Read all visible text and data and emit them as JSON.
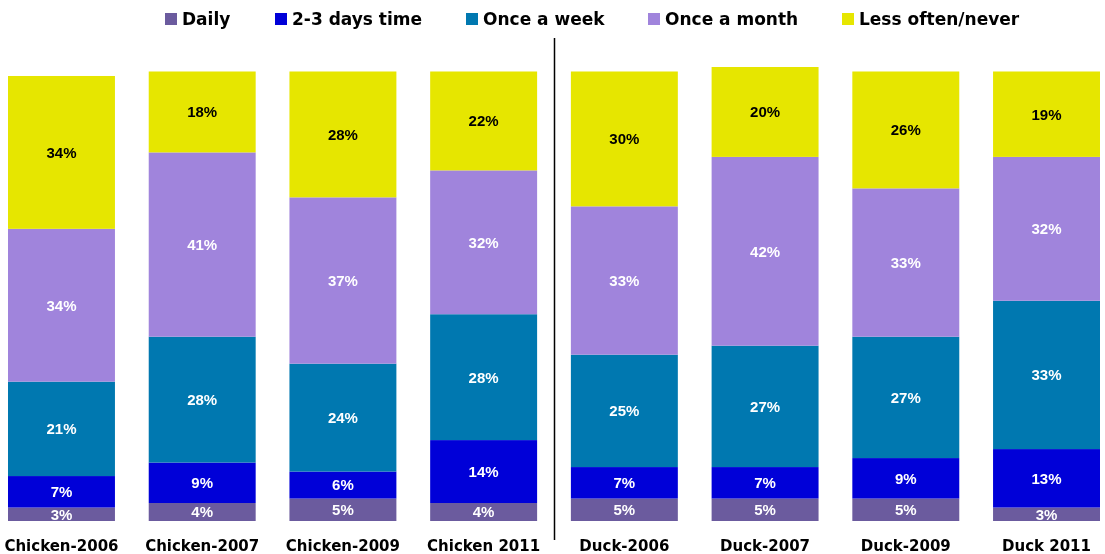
{
  "chart_data": {
    "type": "bar",
    "stacked": true,
    "categories": [
      "Chicken-2006",
      "Chicken-2007",
      "Chicken-2009",
      "Chicken 2011",
      "Duck-2006",
      "Duck-2007",
      "Duck-2009",
      "Duck 2011"
    ],
    "series": [
      {
        "name": "Daily",
        "color": "#6b5b9e",
        "values": [
          3,
          4,
          5,
          4,
          5,
          5,
          5,
          3
        ],
        "value_labels": [
          "3%",
          "4%",
          "5%",
          "4%",
          "5%",
          "5%",
          "5%",
          "3%"
        ]
      },
      {
        "name": "2-3 days time",
        "color": "#0000d8",
        "values": [
          7,
          9,
          6,
          14,
          7,
          7,
          9,
          13
        ],
        "value_labels": [
          "7%",
          "9%",
          "6%",
          "14%",
          "7%",
          "7%",
          "9%",
          "13%"
        ]
      },
      {
        "name": "Once a week",
        "color": "#0078b0",
        "values": [
          21,
          28,
          24,
          28,
          25,
          27,
          27,
          33
        ],
        "value_labels": [
          "21%",
          "28%",
          "24%",
          "28%",
          "25%",
          "27%",
          "27%",
          "33%"
        ]
      },
      {
        "name": "Once a month",
        "color": "#a084dc",
        "values": [
          34,
          41,
          37,
          32,
          33,
          42,
          33,
          32
        ],
        "value_labels": [
          "34%",
          "41%",
          "37%",
          "32%",
          "33%",
          "42%",
          "33%",
          "32%"
        ]
      },
      {
        "name": "Less often/never",
        "color": "#e6e600",
        "values": [
          34,
          18,
          28,
          22,
          30,
          20,
          26,
          19
        ],
        "value_labels": [
          "34%",
          "18%",
          "28%",
          "22%",
          "30%",
          "20%",
          "26%",
          "19%"
        ]
      }
    ],
    "ylim": [
      0,
      101
    ],
    "legend": "top",
    "tick_labels": "x"
  }
}
